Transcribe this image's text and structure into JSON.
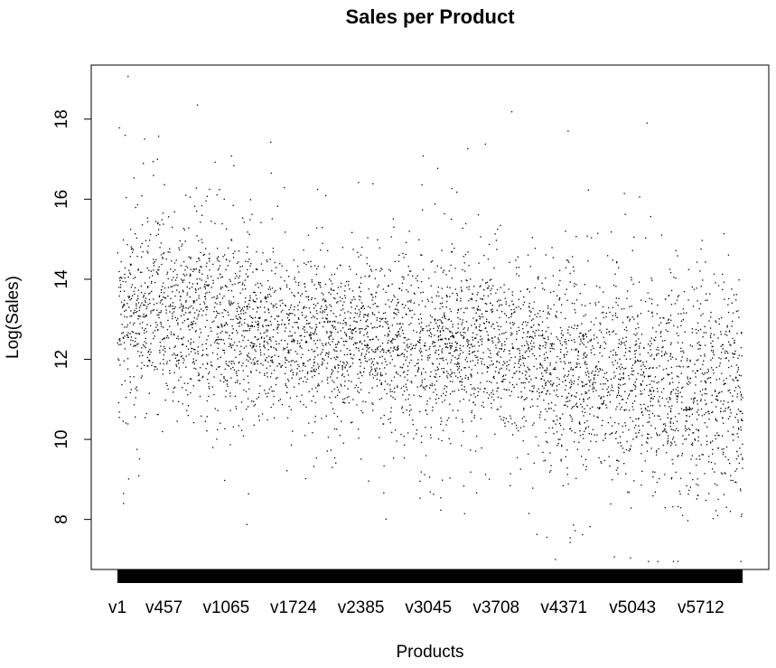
{
  "chart_data": {
    "type": "scatter",
    "title": "Sales per Product",
    "xlabel": "Products",
    "ylabel": "Log(Sales)",
    "x_tick_labels": [
      "v1",
      "v457",
      "v1065",
      "v1724",
      "v2385",
      "v3045",
      "v3708",
      "v4371",
      "v5043",
      "v5712"
    ],
    "x_tick_positions": [
      1,
      457,
      1065,
      1724,
      2385,
      3045,
      3708,
      4371,
      5043,
      5712
    ],
    "x_range": [
      1,
      6120
    ],
    "y_ticks": [
      8,
      10,
      12,
      14,
      16,
      18
    ],
    "ylim": [
      6.75,
      19.35
    ],
    "point_count": 5000,
    "y_trend": {
      "x": [
        1,
        800,
        1500,
        2300,
        3000,
        3700,
        4400,
        5100,
        6120
      ],
      "mean_log_sales": [
        13.2,
        13.1,
        12.6,
        12.5,
        12.4,
        12.3,
        11.8,
        11.4,
        11.1
      ],
      "spread_sd": [
        1.25,
        1.2,
        1.0,
        1.0,
        1.1,
        1.05,
        1.15,
        1.3,
        1.3
      ]
    },
    "y_extremes": {
      "max": 19.2,
      "min": 6.95
    },
    "grid": false,
    "legend": "none"
  }
}
